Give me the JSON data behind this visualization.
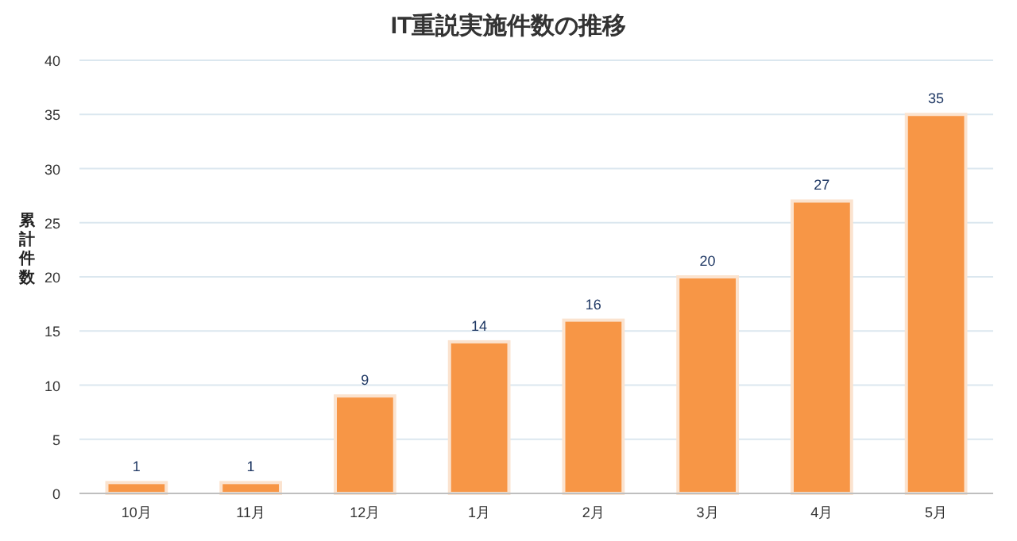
{
  "chart_data": {
    "type": "bar",
    "title": "IT重説実施件数の推移",
    "ylabel": "累計件数",
    "categories": [
      "10月",
      "11月",
      "12月",
      "1月",
      "2月",
      "3月",
      "4月",
      "5月"
    ],
    "values": [
      1,
      1,
      9,
      14,
      16,
      20,
      27,
      35
    ],
    "color": "#f79646",
    "ylim": [
      0,
      40
    ],
    "yticks": [
      0,
      5,
      10,
      15,
      20,
      25,
      30,
      35,
      40
    ],
    "grid": "y",
    "data_labels": true
  }
}
